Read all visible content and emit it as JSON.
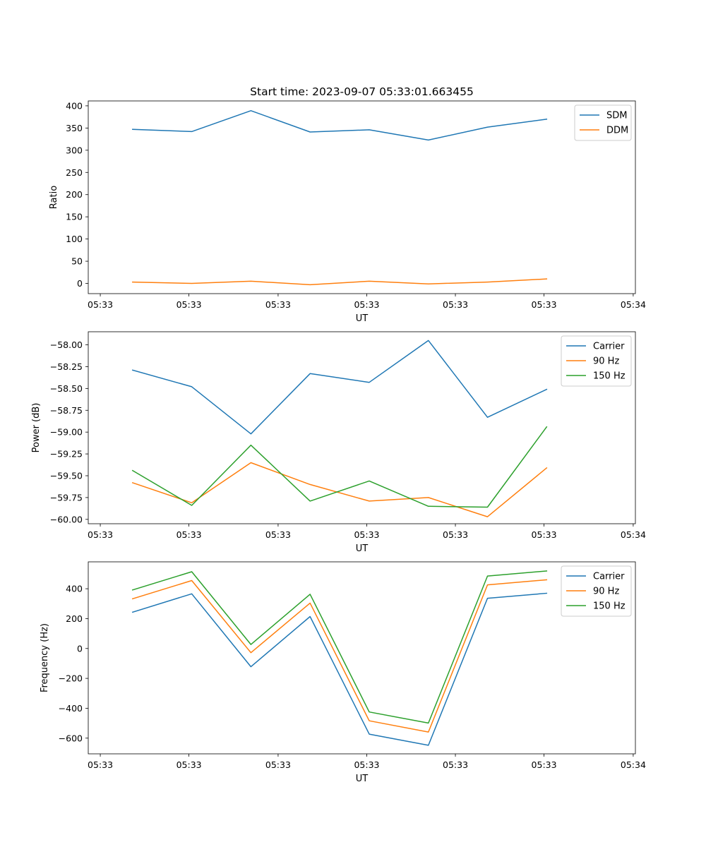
{
  "chart_data": [
    {
      "type": "line",
      "title": "Start time: 2023-09-07 05:33:01.663455",
      "xlabel": "UT",
      "ylabel": "Ratio",
      "x_ticks": [
        "05:33",
        "05:33",
        "05:33",
        "05:33",
        "05:33",
        "05:33",
        "05:34"
      ],
      "xlim": [
        -0.75,
        8.5
      ],
      "ylim": [
        -23,
        411
      ],
      "y_ticks": [
        0,
        50,
        100,
        150,
        200,
        250,
        300,
        350,
        400
      ],
      "legend_position": "top-right",
      "x": [
        0,
        1,
        2,
        3,
        4,
        5,
        6,
        7
      ],
      "series": [
        {
          "name": "SDM",
          "color": "#1f77b4",
          "values": [
            347,
            342,
            389,
            341,
            346,
            323,
            352,
            370
          ]
        },
        {
          "name": "DDM",
          "color": "#ff7f0e",
          "values": [
            3,
            0,
            5,
            -3,
            5,
            -1,
            3,
            10
          ]
        }
      ]
    },
    {
      "type": "line",
      "title": "",
      "xlabel": "UT",
      "ylabel": "Power (dB)",
      "x_ticks": [
        "05:33",
        "05:33",
        "05:33",
        "05:33",
        "05:33",
        "05:33",
        "05:34"
      ],
      "xlim": [
        -0.75,
        8.5
      ],
      "ylim": [
        -60.05,
        -57.85
      ],
      "y_ticks": [
        "-60.00",
        "-59.75",
        "-59.50",
        "-59.25",
        "-59.00",
        "-58.75",
        "-58.50",
        "-58.25",
        "-58.00"
      ],
      "legend_position": "top-right",
      "x": [
        0,
        1,
        2,
        3,
        4,
        5,
        6,
        7
      ],
      "series": [
        {
          "name": "Carrier",
          "color": "#1f77b4",
          "values": [
            -58.29,
            -58.48,
            -59.02,
            -58.33,
            -58.43,
            -57.95,
            -58.83,
            -58.51
          ]
        },
        {
          "name": "90 Hz",
          "color": "#ff7f0e",
          "values": [
            -59.58,
            -59.81,
            -59.35,
            -59.6,
            -59.79,
            -59.75,
            -59.97,
            -59.41
          ]
        },
        {
          "name": "150 Hz",
          "color": "#2ca02c",
          "values": [
            -59.44,
            -59.84,
            -59.15,
            -59.79,
            -59.56,
            -59.85,
            -59.86,
            -58.94
          ]
        }
      ]
    },
    {
      "type": "line",
      "title": "",
      "xlabel": "UT",
      "ylabel": "Frequency (Hz)",
      "x_ticks": [
        "05:33",
        "05:33",
        "05:33",
        "05:33",
        "05:33",
        "05:33",
        "05:34"
      ],
      "xlim": [
        -0.75,
        8.5
      ],
      "ylim": [
        -705,
        580
      ],
      "y_ticks": [
        -600,
        -400,
        -200,
        0,
        200,
        400
      ],
      "legend_position": "top-right",
      "x": [
        0,
        1,
        2,
        3,
        4,
        5,
        6,
        7
      ],
      "series": [
        {
          "name": "Carrier",
          "color": "#1f77b4",
          "values": [
            243,
            366,
            -122,
            214,
            -573,
            -648,
            336,
            370
          ]
        },
        {
          "name": "90 Hz",
          "color": "#ff7f0e",
          "values": [
            333,
            455,
            -28,
            304,
            -484,
            -559,
            426,
            460
          ]
        },
        {
          "name": "150 Hz",
          "color": "#2ca02c",
          "values": [
            392,
            514,
            27,
            363,
            -425,
            -499,
            485,
            519
          ]
        }
      ]
    }
  ]
}
